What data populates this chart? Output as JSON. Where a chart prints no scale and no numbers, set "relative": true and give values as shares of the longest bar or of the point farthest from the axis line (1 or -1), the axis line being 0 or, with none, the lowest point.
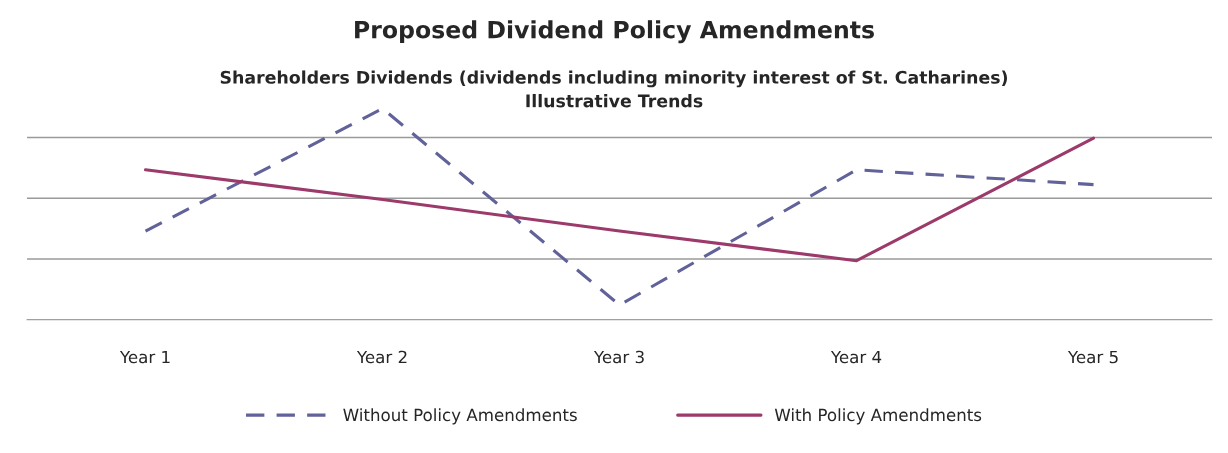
{
  "chart_data": {
    "type": "line",
    "title": "Proposed Dividend Policy Amendments",
    "subtitle": "Shareholders Dividends (dividends including minority interest of St. Catharines)\nIllustrative Trends",
    "categories": [
      "Year 1",
      "Year 2",
      "Year 3",
      "Year 4",
      "Year 5"
    ],
    "relative": true,
    "grid": "y",
    "legend": "bottom",
    "tick_labels": "x",
    "series": [
      {
        "name": "Without Policy Amendments",
        "color": "#62629a",
        "line_style": "dashed",
        "values": [
          0.42,
          1,
          0.07,
          0.71,
          0.64
        ]
      },
      {
        "name": "With Policy Amendments",
        "color": "#9b3a6b",
        "line_style": "solid",
        "values": [
          0.71,
          0.57,
          0.42,
          0.28,
          0.86
        ]
      }
    ]
  }
}
